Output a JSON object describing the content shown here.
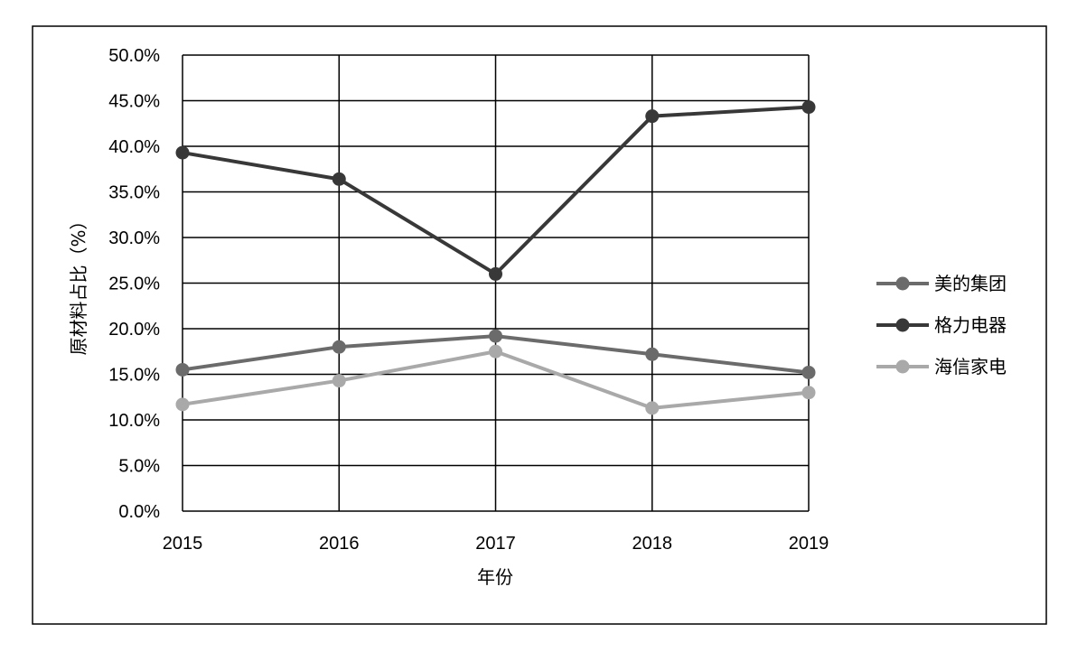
{
  "chart_data": {
    "type": "line",
    "categories": [
      "2015",
      "2016",
      "2017",
      "2018",
      "2019"
    ],
    "series": [
      {
        "name": "美的集团",
        "values": [
          15.5,
          18.0,
          19.2,
          17.2,
          15.2
        ],
        "color": "#6b6b6b"
      },
      {
        "name": "格力电器",
        "values": [
          39.3,
          36.4,
          26.0,
          43.3,
          44.3
        ],
        "color": "#383838"
      },
      {
        "name": "海信家电",
        "values": [
          11.7,
          14.3,
          17.5,
          11.3,
          13.0
        ],
        "color": "#a9a9a9"
      }
    ],
    "xlabel": "年份",
    "ylabel": "原材料占比（%）",
    "ylim": [
      0,
      50
    ],
    "ytick_step": 5,
    "ytick_labels": [
      "0.0%",
      "5.0%",
      "10.0%",
      "15.0%",
      "20.0%",
      "25.0%",
      "30.0%",
      "35.0%",
      "40.0%",
      "45.0%",
      "50.0%"
    ],
    "grid": true,
    "legend_position": "right"
  }
}
